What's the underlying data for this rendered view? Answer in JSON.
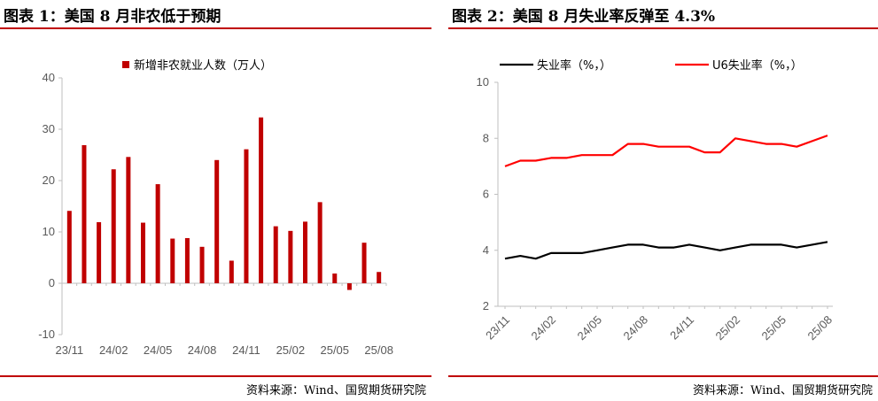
{
  "left": {
    "title": "图表 1：美国 8 月非农低于预期",
    "source": "资料来源：Wind、国贸期货研究院"
  },
  "right": {
    "title": "图表 2：美国 8 月失业率反弹至 4.3%",
    "source": "资料来源：Wind、国贸期货研究院"
  },
  "chart_data": [
    {
      "type": "bar",
      "legend_position": "top",
      "grid": false,
      "ylim": [
        -10,
        40
      ],
      "y_ticks": [
        "40",
        "30",
        "20",
        "10",
        "0",
        "-10"
      ],
      "x_tick_labels": [
        "23/11",
        "24/02",
        "24/05",
        "24/08",
        "24/11",
        "25/02",
        "25/05",
        "25/08"
      ],
      "series": [
        {
          "name": "新增非农就业人数（万人）",
          "color": "#c00000",
          "values": [
            14.1,
            26.9,
            11.9,
            22.2,
            24.6,
            11.8,
            19.3,
            8.7,
            8.8,
            7.1,
            24.0,
            4.4,
            26.1,
            32.3,
            11.1,
            10.2,
            12.0,
            15.8,
            1.9,
            -1.3,
            7.9,
            2.2
          ]
        }
      ]
    },
    {
      "type": "line",
      "legend_position": "top",
      "grid": false,
      "ylim": [
        2,
        10
      ],
      "y_ticks": [
        "10",
        "8",
        "6",
        "4",
        "2"
      ],
      "x_tick_labels": [
        "23/11",
        "24/02",
        "24/05",
        "24/08",
        "24/11",
        "25/02",
        "25/05",
        "25/08"
      ],
      "series": [
        {
          "name": "失业率（%，）",
          "color": "#000000",
          "values": [
            3.7,
            3.8,
            3.7,
            3.9,
            3.9,
            3.9,
            4.0,
            4.1,
            4.2,
            4.2,
            4.1,
            4.1,
            4.2,
            4.1,
            4.0,
            4.1,
            4.2,
            4.2,
            4.2,
            4.1,
            4.2,
            4.3
          ]
        },
        {
          "name": "U6失业率（%，）",
          "color": "#ff0000",
          "values": [
            7.0,
            7.2,
            7.2,
            7.3,
            7.3,
            7.4,
            7.4,
            7.4,
            7.8,
            7.8,
            7.7,
            7.7,
            7.7,
            7.5,
            7.5,
            8.0,
            7.9,
            7.8,
            7.8,
            7.7,
            7.9,
            8.1
          ]
        }
      ]
    }
  ]
}
